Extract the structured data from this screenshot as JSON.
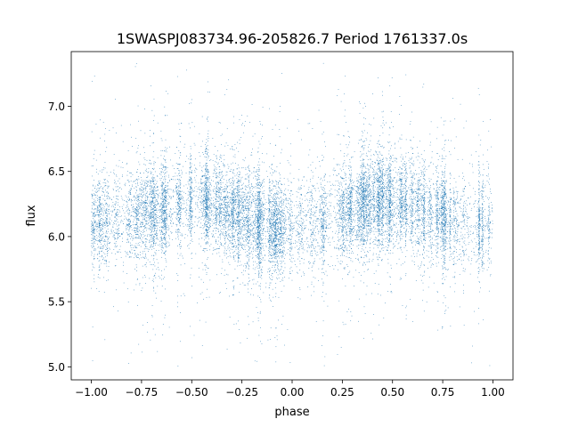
{
  "chart_data": {
    "type": "scatter",
    "title": "1SWASPJ083734.96-205826.7 Period 1761337.0s",
    "xlabel": "phase",
    "ylabel": "flux",
    "xlim": [
      -1.1,
      1.1
    ],
    "ylim": [
      4.9,
      7.42
    ],
    "x_ticks": [
      -1.0,
      -0.75,
      -0.5,
      -0.25,
      0.0,
      0.25,
      0.5,
      0.75,
      1.0
    ],
    "x_tick_labels": [
      "−1.00",
      "−0.75",
      "−0.50",
      "−0.25",
      "0.00",
      "0.25",
      "0.50",
      "0.75",
      "1.00"
    ],
    "y_ticks": [
      5.0,
      5.5,
      6.0,
      6.5,
      7.0
    ],
    "y_tick_labels": [
      "5.0",
      "5.5",
      "6.0",
      "6.5",
      "7.0"
    ],
    "grid": false,
    "marker_color": "#1f77b4",
    "series": [
      {
        "phase_x": [
          -1.0,
          -0.95,
          -0.9,
          -0.85,
          -0.8,
          -0.75,
          -0.7,
          -0.65,
          -0.6,
          -0.55,
          -0.5,
          -0.45,
          -0.4,
          -0.35,
          -0.3,
          -0.25,
          -0.2,
          -0.15,
          -0.1,
          -0.05,
          0.0,
          0.05,
          0.1,
          0.15,
          0.2,
          0.25,
          0.3,
          0.35,
          0.4,
          0.45,
          0.5,
          0.55,
          0.6,
          0.65,
          0.7,
          0.75,
          0.8,
          0.85,
          0.9,
          0.95,
          1.0
        ],
        "flux_median": [
          6.12,
          6.1,
          6.12,
          6.14,
          6.15,
          6.17,
          6.19,
          6.2,
          6.22,
          6.26,
          6.28,
          6.27,
          6.25,
          6.22,
          6.19,
          6.16,
          6.12,
          6.09,
          6.07,
          6.06,
          6.07,
          6.08,
          6.09,
          6.1,
          6.13,
          6.16,
          6.2,
          6.23,
          6.26,
          6.28,
          6.27,
          6.25,
          6.22,
          6.2,
          6.17,
          6.15,
          6.12,
          6.1,
          6.08,
          6.08,
          6.1
        ],
        "flux_spread": 0.17,
        "outlier_range": [
          5.0,
          7.35
        ],
        "n_points": 14000
      }
    ]
  }
}
